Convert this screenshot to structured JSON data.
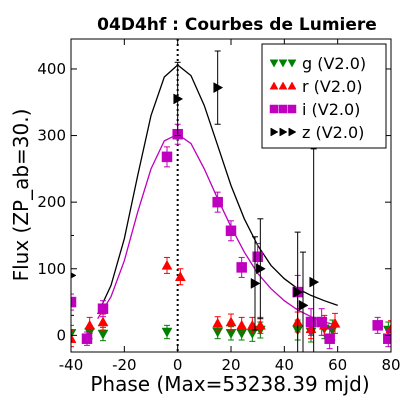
{
  "chart_data": {
    "type": "scatter",
    "title": "04D4hf : Courbes de Lumiere",
    "xlabel": "Phase (Max=53238.39 mjd)",
    "ylabel": "Flux (ZP_ab=30.)",
    "xlim": [
      -40,
      80
    ],
    "ylim": [
      -25,
      445
    ],
    "xticks": [
      -40,
      -20,
      0,
      20,
      40,
      60,
      80
    ],
    "yticks": [
      0,
      100,
      200,
      300,
      400
    ],
    "legend_position": "top-right",
    "max_line_x": 0,
    "series": [
      {
        "name": "g (V2.0)",
        "marker": "triangle-down",
        "color": "#008000",
        "points": [
          {
            "x": -40,
            "y": 3,
            "err": 12
          },
          {
            "x": -33,
            "y": 5,
            "err": 10
          },
          {
            "x": -28,
            "y": 2,
            "err": 10
          },
          {
            "x": -4,
            "y": 5,
            "err": 10
          },
          {
            "x": 15,
            "y": 5,
            "err": 10
          },
          {
            "x": 20,
            "y": 3,
            "err": 10
          },
          {
            "x": 24,
            "y": 3,
            "err": 10
          },
          {
            "x": 28,
            "y": 3,
            "err": 12
          },
          {
            "x": 31,
            "y": 8,
            "err": 12
          },
          {
            "x": 45,
            "y": 8,
            "err": 15
          },
          {
            "x": 50,
            "y": 5,
            "err": 15
          },
          {
            "x": 55,
            "y": 10,
            "err": 15
          },
          {
            "x": 58,
            "y": 8,
            "err": 15
          },
          {
            "x": 79,
            "y": 8,
            "err": 12
          }
        ],
        "model": []
      },
      {
        "name": "r (V2.0)",
        "marker": "triangle-up",
        "color": "#ff0000",
        "points": [
          {
            "x": -40,
            "y": -5,
            "err": 12
          },
          {
            "x": -33,
            "y": 15,
            "err": 12
          },
          {
            "x": -28,
            "y": 20,
            "err": 12
          },
          {
            "x": -4,
            "y": 105,
            "err": 12
          },
          {
            "x": 1,
            "y": 88,
            "err": 12
          },
          {
            "x": 15,
            "y": 18,
            "err": 10
          },
          {
            "x": 20,
            "y": 20,
            "err": 12
          },
          {
            "x": 24,
            "y": 15,
            "err": 12
          },
          {
            "x": 28,
            "y": 15,
            "err": 12
          },
          {
            "x": 31,
            "y": 15,
            "err": 12
          },
          {
            "x": 45,
            "y": 20,
            "err": 15
          },
          {
            "x": 50,
            "y": 10,
            "err": 15
          },
          {
            "x": 55,
            "y": 15,
            "err": 15
          },
          {
            "x": 59,
            "y": 18,
            "err": 15
          },
          {
            "x": 80,
            "y": 10,
            "err": 12
          }
        ],
        "model": []
      },
      {
        "name": "i (V2.0)",
        "marker": "square",
        "color": "#bf00bf",
        "points": [
          {
            "x": -40,
            "y": 50,
            "err": 12
          },
          {
            "x": -34,
            "y": -5,
            "err": 10
          },
          {
            "x": -28,
            "y": 40,
            "err": 12
          },
          {
            "x": -4,
            "y": 268,
            "err": 15
          },
          {
            "x": 0,
            "y": 302,
            "err": 15
          },
          {
            "x": 15,
            "y": 200,
            "err": 15
          },
          {
            "x": 20,
            "y": 157,
            "err": 15
          },
          {
            "x": 24,
            "y": 102,
            "err": 15
          },
          {
            "x": 30,
            "y": 118,
            "err": 20
          },
          {
            "x": 45,
            "y": 65,
            "err": 25
          },
          {
            "x": 50,
            "y": 20,
            "err": 20
          },
          {
            "x": 54,
            "y": 20,
            "err": 20
          },
          {
            "x": 57,
            "y": -5,
            "err": 15
          },
          {
            "x": 75,
            "y": 15,
            "err": 12
          },
          {
            "x": 79,
            "y": -5,
            "err": 12
          }
        ],
        "model": [
          {
            "x": -30,
            "y": 25
          },
          {
            "x": -25,
            "y": 58
          },
          {
            "x": -20,
            "y": 112
          },
          {
            "x": -15,
            "y": 185
          },
          {
            "x": -10,
            "y": 250
          },
          {
            "x": -5,
            "y": 292
          },
          {
            "x": 0,
            "y": 302
          },
          {
            "x": 5,
            "y": 288
          },
          {
            "x": 10,
            "y": 250
          },
          {
            "x": 15,
            "y": 205
          },
          {
            "x": 20,
            "y": 163
          },
          {
            "x": 25,
            "y": 125
          },
          {
            "x": 30,
            "y": 93
          },
          {
            "x": 35,
            "y": 70
          },
          {
            "x": 40,
            "y": 52
          },
          {
            "x": 45,
            "y": 38
          },
          {
            "x": 50,
            "y": 28
          },
          {
            "x": 55,
            "y": 20
          },
          {
            "x": 60,
            "y": 15
          }
        ]
      },
      {
        "name": "z (V2.0)",
        "marker": "triangle-right",
        "color": "#000000",
        "points": [
          {
            "x": -40,
            "y": 90,
            "err": 60
          },
          {
            "x": 0,
            "y": 355,
            "err": 55
          },
          {
            "x": 15,
            "y": 372,
            "err": 55
          },
          {
            "x": 29,
            "y": 78,
            "err": 70
          },
          {
            "x": 31,
            "y": 100,
            "err": 75
          },
          {
            "x": 45,
            "y": 65,
            "err": 90
          },
          {
            "x": 47,
            "y": 45,
            "err": 80
          },
          {
            "x": 51,
            "y": 80,
            "err": 200
          }
        ],
        "model": [
          {
            "x": -30,
            "y": 32
          },
          {
            "x": -25,
            "y": 75
          },
          {
            "x": -20,
            "y": 145
          },
          {
            "x": -15,
            "y": 240
          },
          {
            "x": -10,
            "y": 330
          },
          {
            "x": -5,
            "y": 388
          },
          {
            "x": 0,
            "y": 406
          },
          {
            "x": 5,
            "y": 390
          },
          {
            "x": 10,
            "y": 345
          },
          {
            "x": 15,
            "y": 285
          },
          {
            "x": 20,
            "y": 225
          },
          {
            "x": 25,
            "y": 175
          },
          {
            "x": 30,
            "y": 135
          },
          {
            "x": 35,
            "y": 105
          },
          {
            "x": 40,
            "y": 85
          },
          {
            "x": 45,
            "y": 70
          },
          {
            "x": 50,
            "y": 60
          },
          {
            "x": 55,
            "y": 52
          },
          {
            "x": 60,
            "y": 45
          }
        ]
      }
    ]
  }
}
